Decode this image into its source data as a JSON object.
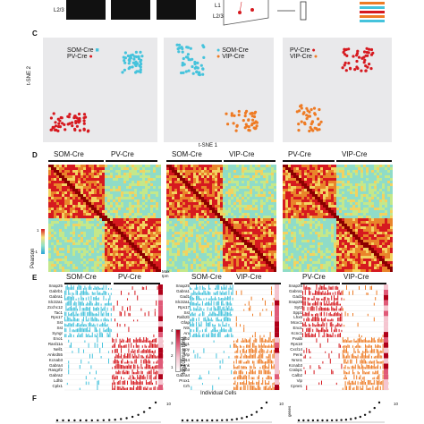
{
  "panels": {
    "top": {
      "layer_label": "L2/3",
      "schematic_l1": "L1",
      "schematic_l23": "L2/3"
    },
    "C": {
      "label": "C",
      "ylabel": "t-SNE 2",
      "xlabel": "t-SNE 1",
      "plots": [
        {
          "legend": [
            "SOM-Cre",
            "PV-Cre"
          ]
        },
        {
          "legend": [
            "SOM-Cre",
            "VIP-Cre"
          ]
        },
        {
          "legend": [
            "PV-Cre",
            "VIP-Cre"
          ]
        }
      ]
    },
    "D": {
      "label": "D",
      "colorbar_label": "Pearson",
      "colorbar_max": "1",
      "colorbar_min": "-1",
      "headers": [
        [
          "SOM-Cre",
          "PV-Cre"
        ],
        [
          "SOM-Cre",
          "VIP-Cre"
        ],
        [
          "PV-Cre",
          "VIP-Cre"
        ]
      ]
    },
    "E": {
      "label": "E",
      "max_label": "Max tpm",
      "colorbar_label": "log10(max tpm)",
      "colorbar_ticks": [
        "4",
        "3",
        "2",
        "1"
      ],
      "xlabel": "Individual Cells",
      "headers": [
        [
          "SOM-Cre",
          "PV-Cre"
        ],
        [
          "SOM-Cre",
          "VIP-Cre"
        ],
        [
          "PV-Cre",
          "VIP-Cre"
        ]
      ],
      "genes": [
        [
          "Snap25",
          "Gabrb1",
          "Gabra1",
          "Slc32a1",
          "Zcchc12",
          "Tac1",
          "Rps17",
          "Sst",
          "Sst",
          "Syngr",
          "Eno1",
          "Rasl11a",
          "Nell1",
          "Ankrd55",
          "Kcnab3",
          "Gabra4",
          "Rasgrf2",
          "Gabra2",
          "Ldhb",
          "Cplx1"
        ],
        [
          "Snap25",
          "Gabra1",
          "Gad1",
          "Slc32a1",
          "Rps17",
          "Sst",
          "Ralb2b",
          "Gfap",
          "Nts",
          "Arx",
          "Calb2",
          "Ndrg1",
          "Npy",
          "Vip",
          "Cxcl14",
          "Penk",
          "Kcnab3",
          "Gabra4",
          "Prox1",
          "Crh"
        ],
        [
          "Snap25",
          "Gabra1",
          "Gad1",
          "Snap25",
          "Syt2",
          "Spp1",
          "Lhx6",
          "Mcxc1",
          "Eno1",
          "Kcnc1",
          "Pvalb",
          "Rps18",
          "Cxcl14",
          "Penk",
          "Nrsn1",
          "Kcnab3",
          "Crabp1",
          "Calb2",
          "Vip",
          "Cpne1"
        ]
      ]
    },
    "F": {
      "label": "F",
      "ylabel": "genes",
      "ticks": [
        "10",
        "10",
        "10"
      ]
    }
  },
  "colors": {
    "som": "#45c3dc",
    "pv": "#d6191f",
    "vip": "#ee7b24",
    "panel_bg": "#e9e9eb"
  }
}
